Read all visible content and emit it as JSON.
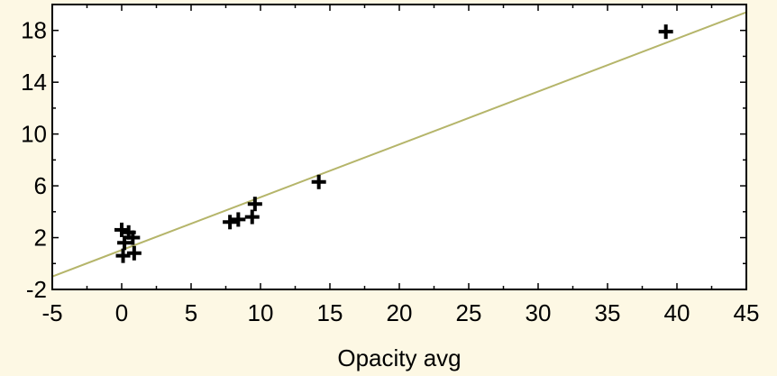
{
  "chart_data": {
    "type": "scatter",
    "title": "",
    "xlabel": "Opacity avg",
    "ylabel": "",
    "xlim": [
      -5,
      45
    ],
    "ylim": [
      -2,
      20
    ],
    "xticks": [
      -5,
      0,
      5,
      10,
      15,
      20,
      25,
      30,
      35,
      40,
      45
    ],
    "yticks": [
      -2,
      2,
      6,
      10,
      14,
      18
    ],
    "grid": false,
    "points": [
      {
        "x": 0.0,
        "y": 2.6
      },
      {
        "x": 0.2,
        "y": 1.6
      },
      {
        "x": 0.5,
        "y": 2.4
      },
      {
        "x": 0.8,
        "y": 2.0
      },
      {
        "x": 0.1,
        "y": 0.6
      },
      {
        "x": 0.9,
        "y": 0.8
      },
      {
        "x": 7.8,
        "y": 3.2
      },
      {
        "x": 8.4,
        "y": 3.4
      },
      {
        "x": 9.4,
        "y": 3.6
      },
      {
        "x": 9.6,
        "y": 4.6
      },
      {
        "x": 14.2,
        "y": 6.3
      },
      {
        "x": 39.2,
        "y": 17.9
      }
    ],
    "fit_line": {
      "x": [
        -5,
        45
      ],
      "y": [
        -1.0,
        19.4
      ]
    },
    "colors": {
      "points": "#000000",
      "fit_line": "#b5b56a",
      "background": "#fdf8e4",
      "plot_area": "#ffffff"
    }
  }
}
